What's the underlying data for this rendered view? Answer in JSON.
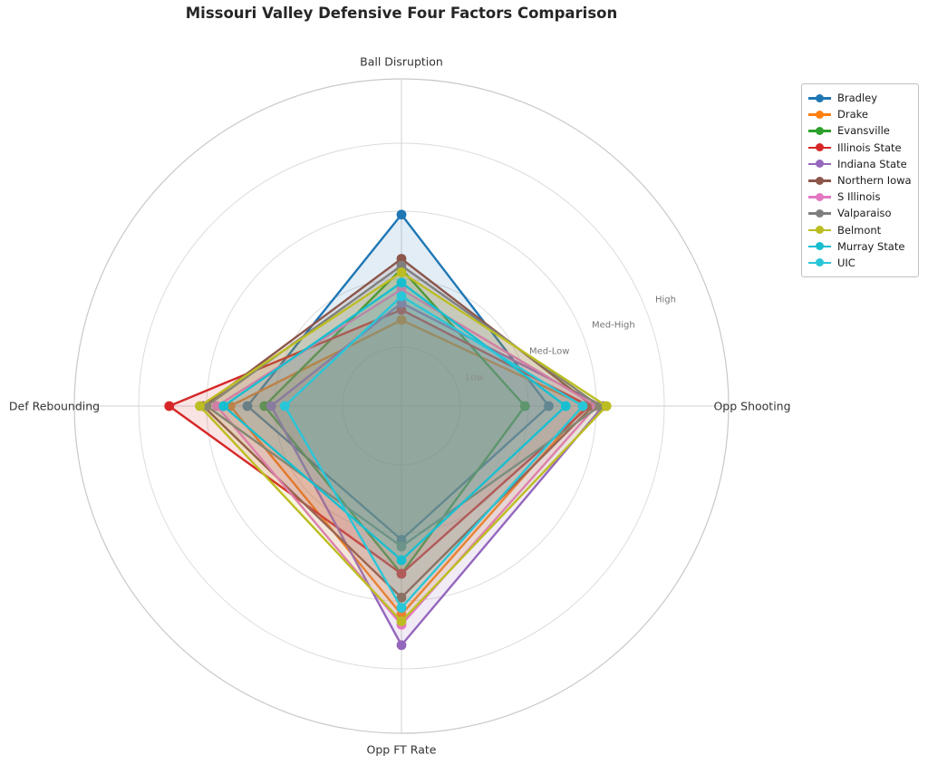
{
  "title": "Missouri Valley Defensive Four Factors Comparison",
  "chart_data": {
    "type": "radar",
    "title": "Missouri Valley Defensive Four Factors Comparison",
    "categories": [
      "Ball Disruption",
      "Opp Shooting",
      "Opp FT Rate",
      "Def Rebounding"
    ],
    "category_angles_deg": [
      90,
      0,
      270,
      180
    ],
    "radial_ticks": [
      "Low",
      "Med-Low",
      "Med-High",
      "High"
    ],
    "radial_tick_values": [
      1,
      2,
      3,
      4
    ],
    "radial_range": [
      0.13,
      4.95
    ],
    "grid": true,
    "legend_position": "upper right",
    "series": [
      {
        "name": "Bradley",
        "color": "#1f77b4",
        "values": [
          2.95,
          2.3,
          2.1,
          2.4
        ]
      },
      {
        "name": "Drake",
        "color": "#ff7f0e",
        "values": [
          1.4,
          2.85,
          3.2,
          2.65
        ]
      },
      {
        "name": "Evansville",
        "color": "#2ca02c",
        "values": [
          2.15,
          1.95,
          2.6,
          2.15
        ]
      },
      {
        "name": "Illinois State",
        "color": "#d62728",
        "values": [
          1.55,
          2.9,
          2.6,
          3.55
        ]
      },
      {
        "name": "Indiana State",
        "color": "#9467bd",
        "values": [
          1.65,
          3.1,
          3.65,
          2.05
        ]
      },
      {
        "name": "Northern Iowa",
        "color": "#8c564b",
        "values": [
          2.3,
          2.95,
          2.95,
          3.05
        ]
      },
      {
        "name": "S Illinois",
        "color": "#e377c2",
        "values": [
          1.85,
          3.0,
          3.35,
          2.85
        ]
      },
      {
        "name": "Valparaiso",
        "color": "#7f7f7f",
        "values": [
          2.2,
          3.05,
          2.2,
          3.0
        ]
      },
      {
        "name": "Belmont",
        "color": "#bcbd22",
        "values": [
          2.1,
          3.15,
          3.3,
          3.1
        ]
      },
      {
        "name": "Murray State",
        "color": "#17becf",
        "values": [
          1.95,
          2.55,
          2.4,
          2.75
        ]
      },
      {
        "name": "UIC",
        "color": "#29c6d8",
        "values": [
          1.75,
          2.8,
          3.1,
          1.85
        ]
      }
    ]
  },
  "style_colors": {
    "grid_line": "#dcdcdc",
    "outer_ring": "#c9c9c9",
    "axis_cross": "#d2d2d2",
    "title_text": "#262626",
    "axis_label_text": "#333333",
    "radial_tick_text": "#767676"
  }
}
